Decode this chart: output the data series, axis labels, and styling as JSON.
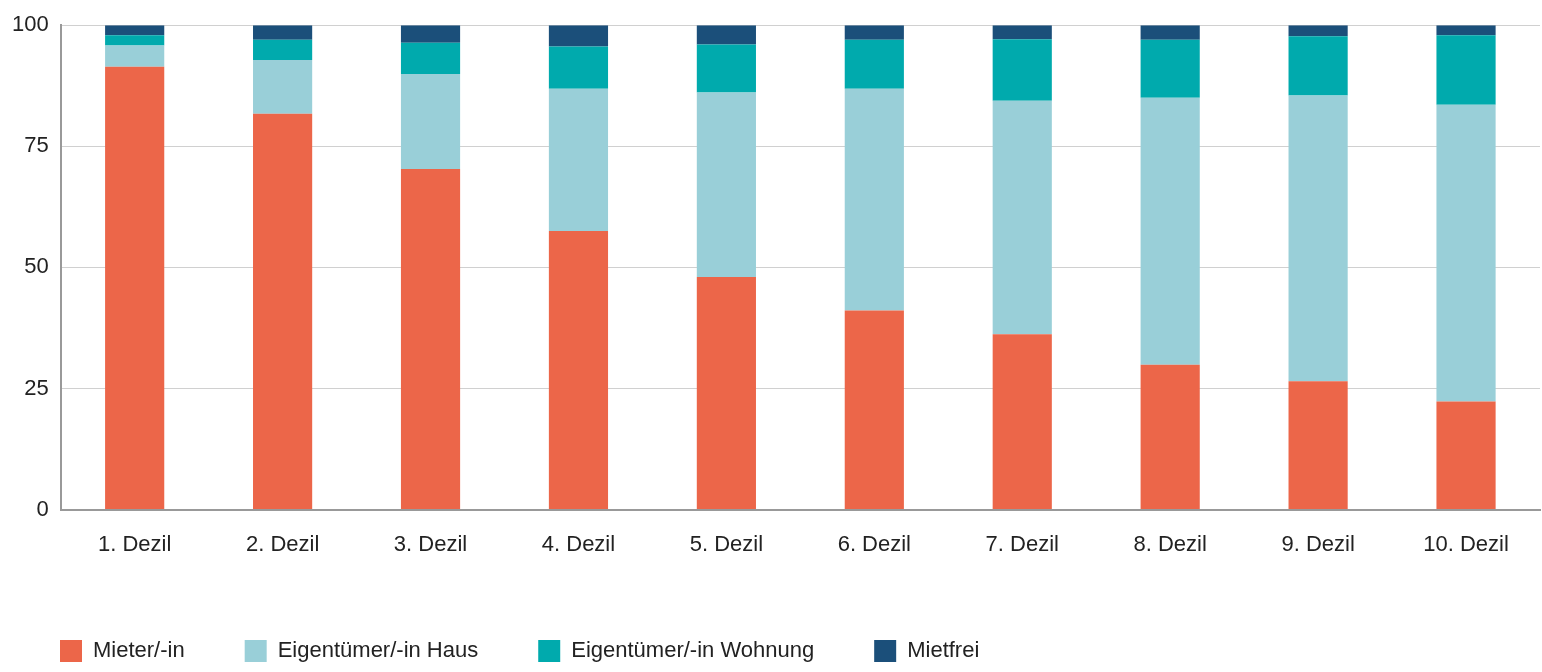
{
  "chart_data": {
    "type": "bar",
    "stacked": true,
    "categories": [
      "1. Dezil",
      "2. Dezil",
      "3. Dezil",
      "4. Dezil",
      "5. Dezil",
      "6. Dezil",
      "7. Dezil",
      "8. Dezil",
      "9. Dezil",
      "10. Dezil"
    ],
    "series": [
      {
        "name": "Mieter/-in",
        "color": "#ec6649",
        "values": [
          91.4,
          81.7,
          70.3,
          57.5,
          48.0,
          41.1,
          36.2,
          29.9,
          26.5,
          22.3
        ]
      },
      {
        "name": "Eigentümer/-in Haus",
        "color": "#99cfd8",
        "values": [
          4.4,
          11.1,
          19.6,
          29.4,
          38.1,
          45.8,
          48.2,
          55.1,
          59.0,
          61.3
        ]
      },
      {
        "name": "Eigentümer/-in Wohnung",
        "color": "#00aaad",
        "values": [
          2.1,
          4.2,
          6.5,
          8.7,
          9.9,
          10.1,
          12.7,
          12.0,
          12.2,
          14.3
        ]
      },
      {
        "name": "Mietfrei",
        "color": "#1b4f7a",
        "values": [
          2.1,
          3.0,
          3.6,
          4.4,
          4.0,
          3.0,
          2.9,
          3.0,
          2.3,
          2.1
        ]
      }
    ],
    "ylim": [
      0,
      100
    ],
    "yticks": [
      0,
      25,
      50,
      75,
      100
    ],
    "grid": "y",
    "legend": "bottom left"
  }
}
